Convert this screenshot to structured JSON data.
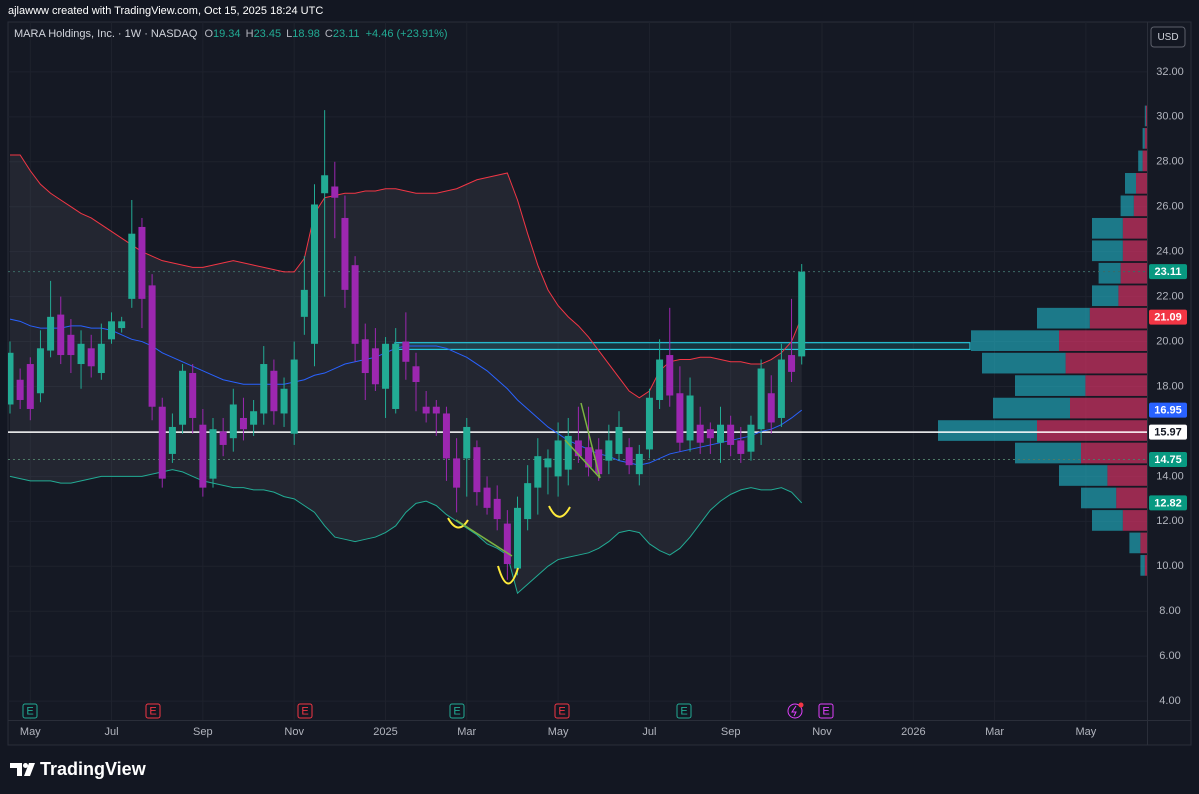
{
  "header": {
    "credit": "ajlawww created with TradingView.com, Oct 15, 2025 18:24 UTC"
  },
  "footer": {
    "brand": "TradingView"
  },
  "chart_data": {
    "type": "candlestick",
    "currency": "USD",
    "legend": {
      "symbol": "MARA Holdings, Inc. · 1W · NASDAQ",
      "ohlc": [
        {
          "key": "O",
          "value": 19.34
        },
        {
          "key": "H",
          "value": 23.45
        },
        {
          "key": "L",
          "value": 18.98
        },
        {
          "key": "C",
          "value": 23.11
        }
      ],
      "change": "+4.46 (+23.91%)",
      "value_color": "#22ab94"
    },
    "up_color": "#22ab94",
    "down_color": "#9c27b0",
    "categories": [
      null,
      null,
      "May",
      null,
      null,
      null,
      null,
      null,
      null,
      null,
      "Jul",
      null,
      null,
      null,
      null,
      null,
      null,
      null,
      null,
      "Sep",
      null,
      null,
      null,
      null,
      null,
      null,
      null,
      null,
      "Nov",
      null,
      null,
      null,
      null,
      null,
      null,
      null,
      null,
      "2025",
      null,
      null,
      null,
      null,
      null,
      null,
      null,
      "Mar",
      null,
      null,
      null,
      null,
      null,
      null,
      null,
      null,
      "May",
      null,
      null,
      null,
      null,
      null,
      null,
      null,
      null,
      "Jul",
      null,
      null,
      null,
      null,
      null,
      null,
      null,
      "Sep",
      null,
      null,
      null,
      null,
      null,
      null,
      null,
      null,
      "Nov",
      null,
      null,
      null,
      null,
      null,
      null,
      null,
      null,
      "2026",
      null,
      null,
      null,
      null,
      null,
      null,
      null,
      "Mar",
      null,
      null,
      null,
      null,
      null,
      null,
      null,
      null,
      "May"
    ],
    "open": [
      17.2,
      18.3,
      19.0,
      17.7,
      19.6,
      21.2,
      20.3,
      19.0,
      19.7,
      18.6,
      20.1,
      20.6,
      21.9,
      25.1,
      22.5,
      17.1,
      15.0,
      16.3,
      18.6,
      16.3,
      13.9,
      16.0,
      15.7,
      16.6,
      16.3,
      16.8,
      18.7,
      16.8,
      15.9,
      21.1,
      19.9,
      26.6,
      26.9,
      25.5,
      23.4,
      20.1,
      19.7,
      17.9,
      17.0,
      20.0,
      18.9,
      17.1,
      17.1,
      16.8,
      14.8,
      14.8,
      15.3,
      13.5,
      13.0,
      11.9,
      9.9,
      12.1,
      13.5,
      14.4,
      14.0,
      14.3,
      15.6,
      15.3,
      15.2,
      14.7,
      15.0,
      15.3,
      14.1,
      15.2,
      17.4,
      19.4,
      17.7,
      15.6,
      16.3,
      16.1,
      15.5,
      16.3,
      15.6,
      15.1,
      16.1,
      17.7,
      16.6,
      19.4,
      19.34,
      null,
      null,
      null,
      null,
      null,
      null,
      null,
      null,
      null,
      null,
      null,
      null,
      null,
      null,
      null,
      null,
      null,
      null,
      null,
      null,
      null,
      null,
      null,
      null,
      null,
      null,
      null,
      null
    ],
    "high": [
      20.0,
      18.8,
      19.3,
      20.5,
      22.7,
      22.0,
      21.0,
      20.5,
      20.3,
      20.8,
      21.3,
      21.1,
      26.3,
      25.5,
      23.0,
      17.5,
      16.8,
      19.0,
      19.0,
      17.0,
      16.6,
      16.6,
      17.9,
      17.5,
      17.4,
      19.8,
      19.2,
      18.4,
      20.0,
      23.8,
      27.0,
      30.3,
      28.0,
      26.5,
      23.8,
      20.8,
      20.6,
      20.2,
      20.6,
      21.3,
      19.5,
      17.8,
      17.4,
      17.1,
      15.7,
      16.6,
      15.6,
      14.0,
      13.6,
      12.5,
      13.1,
      14.5,
      15.7,
      15.2,
      16.4,
      16.6,
      17.1,
      17.1,
      15.7,
      16.3,
      16.9,
      15.7,
      15.4,
      17.9,
      20.1,
      21.5,
      18.9,
      18.4,
      17.1,
      16.4,
      17.1,
      16.7,
      16.2,
      16.7,
      19.2,
      18.5,
      19.9,
      21.9,
      23.45,
      null,
      null,
      null,
      null,
      null,
      null,
      null,
      null,
      null,
      null,
      null,
      null,
      null,
      null,
      null,
      null,
      null,
      null,
      null,
      null,
      null,
      null,
      null,
      null,
      null,
      null,
      null,
      null
    ],
    "low": [
      16.8,
      17.0,
      16.5,
      17.3,
      19.3,
      19.0,
      18.6,
      17.9,
      18.4,
      18.3,
      19.9,
      20.4,
      21.5,
      20.6,
      16.5,
      13.5,
      14.6,
      15.9,
      15.9,
      13.1,
      13.5,
      14.9,
      15.1,
      15.6,
      15.8,
      16.3,
      16.3,
      16.2,
      15.4,
      20.3,
      18.9,
      22.0,
      24.6,
      21.5,
      19.1,
      17.4,
      17.8,
      16.6,
      16.8,
      18.3,
      16.9,
      16.4,
      15.8,
      13.8,
      12.4,
      13.1,
      12.7,
      12.3,
      11.6,
      9.4,
      9.6,
      11.6,
      12.3,
      13.2,
      13.1,
      13.6,
      14.6,
      14.0,
      13.8,
      14.1,
      14.7,
      14.1,
      13.6,
      14.8,
      17.0,
      17.1,
      15.1,
      15.1,
      15.0,
      15.0,
      14.6,
      14.9,
      14.6,
      14.7,
      15.4,
      15.9,
      16.2,
      18.2,
      18.98,
      null,
      null,
      null,
      null,
      null,
      null,
      null,
      null,
      null,
      null,
      null,
      null,
      null,
      null,
      null,
      null,
      null,
      null,
      null,
      null,
      null,
      null,
      null,
      null,
      null,
      null,
      null,
      null
    ],
    "close": [
      19.5,
      17.4,
      17.0,
      19.7,
      21.1,
      19.4,
      19.4,
      19.9,
      18.9,
      19.9,
      20.9,
      20.9,
      24.8,
      21.9,
      17.1,
      13.9,
      16.2,
      18.7,
      16.6,
      13.5,
      16.1,
      15.4,
      17.2,
      16.1,
      16.9,
      19.0,
      16.9,
      17.9,
      19.2,
      22.3,
      26.1,
      27.4,
      26.4,
      22.3,
      19.9,
      18.6,
      18.1,
      19.9,
      19.9,
      19.1,
      18.2,
      16.8,
      16.8,
      14.8,
      13.5,
      16.2,
      13.3,
      12.6,
      12.1,
      10.1,
      12.6,
      13.7,
      14.9,
      14.8,
      15.6,
      15.8,
      14.9,
      14.4,
      14.1,
      15.6,
      16.2,
      14.5,
      15.0,
      17.5,
      19.2,
      17.6,
      15.5,
      17.6,
      15.5,
      15.7,
      16.3,
      15.4,
      15.0,
      16.3,
      18.8,
      16.4,
      19.2,
      18.65,
      23.11,
      null,
      null,
      null,
      null,
      null,
      null,
      null,
      null,
      null,
      null,
      null,
      null,
      null,
      null,
      null,
      null,
      null,
      null,
      null,
      null,
      null,
      null,
      null,
      null,
      null,
      null,
      null,
      null
    ],
    "bands": {
      "fill_color": "rgba(120,123,134,0.14)",
      "upper": {
        "color": "#f23645",
        "values": [
          28.3,
          28.3,
          27.6,
          27.0,
          26.6,
          26.3,
          26.0,
          25.7,
          25.5,
          25.2,
          24.9,
          24.6,
          24.3,
          24.0,
          23.8,
          23.6,
          23.5,
          23.4,
          23.3,
          23.3,
          23.4,
          23.5,
          23.6,
          23.5,
          23.4,
          23.3,
          23.2,
          23.1,
          23.1,
          23.7,
          25.7,
          26.4,
          26.5,
          26.6,
          26.6,
          26.7,
          26.7,
          26.8,
          26.8,
          26.7,
          26.6,
          26.6,
          26.6,
          26.7,
          26.8,
          27.0,
          27.2,
          27.3,
          27.4,
          27.5,
          26.3,
          24.8,
          23.4,
          22.3,
          21.6,
          21.1,
          20.7,
          20.2,
          19.6,
          19.0,
          18.4,
          17.8,
          17.5,
          17.8,
          18.7,
          19.1,
          19.2,
          19.2,
          19.3,
          19.3,
          19.2,
          19.1,
          19.1,
          19.0,
          19.0,
          19.2,
          19.5,
          20.0,
          21.09,
          null,
          null,
          null,
          null,
          null,
          null,
          null,
          null,
          null,
          null,
          null,
          null,
          null,
          null,
          null,
          null,
          null,
          null,
          null,
          null,
          null,
          null,
          null,
          null,
          null,
          null,
          null,
          null
        ]
      },
      "middle": {
        "color": "#2962ff",
        "values": [
          21.0,
          20.9,
          20.7,
          20.6,
          20.6,
          20.6,
          20.7,
          20.7,
          20.6,
          20.6,
          20.5,
          20.3,
          20.1,
          20.0,
          19.8,
          19.5,
          19.3,
          19.1,
          18.9,
          18.7,
          18.5,
          18.3,
          18.2,
          18.1,
          18.1,
          18.1,
          18.1,
          18.1,
          18.2,
          18.3,
          18.5,
          18.6,
          18.8,
          19.0,
          19.1,
          19.2,
          19.3,
          19.5,
          19.7,
          19.8,
          19.8,
          19.8,
          19.8,
          19.7,
          19.5,
          19.3,
          19.0,
          18.7,
          18.3,
          17.9,
          17.4,
          17.0,
          16.6,
          16.2,
          15.9,
          15.6,
          15.4,
          15.2,
          15.0,
          14.9,
          14.7,
          14.6,
          14.5,
          14.6,
          14.8,
          15.0,
          15.1,
          15.2,
          15.3,
          15.4,
          15.5,
          15.6,
          15.7,
          15.8,
          16.0,
          16.1,
          16.3,
          16.6,
          16.95,
          null,
          null,
          null,
          null,
          null,
          null,
          null,
          null,
          null,
          null,
          null,
          null,
          null,
          null,
          null,
          null,
          null,
          null,
          null,
          null,
          null,
          null,
          null,
          null,
          null,
          null,
          null,
          null
        ]
      },
      "lower": {
        "color": "#22ab94",
        "values": [
          14.0,
          13.9,
          13.8,
          13.8,
          13.8,
          13.7,
          13.7,
          13.8,
          13.9,
          14.0,
          14.0,
          14.0,
          14.0,
          14.0,
          14.1,
          14.2,
          14.3,
          14.2,
          14.0,
          13.8,
          13.7,
          13.6,
          13.5,
          13.5,
          13.4,
          13.4,
          13.3,
          13.1,
          13.0,
          12.7,
          12.4,
          11.8,
          11.3,
          11.2,
          11.1,
          11.2,
          11.3,
          11.5,
          11.8,
          12.4,
          12.8,
          12.9,
          12.7,
          12.3,
          12.0,
          11.7,
          11.4,
          11.0,
          10.8,
          10.5,
          8.8,
          9.2,
          9.6,
          10.0,
          10.3,
          10.4,
          10.5,
          10.6,
          10.8,
          11.1,
          11.5,
          11.6,
          11.5,
          11.0,
          10.7,
          10.5,
          10.8,
          11.3,
          11.9,
          12.5,
          12.9,
          13.2,
          13.4,
          13.5,
          13.4,
          13.4,
          13.5,
          13.3,
          12.82,
          null,
          null,
          null,
          null,
          null,
          null,
          null,
          null,
          null,
          null,
          null,
          null,
          null,
          null,
          null,
          null,
          null,
          null,
          null,
          null,
          null,
          null,
          null,
          null,
          null,
          null,
          null,
          null
        ]
      }
    },
    "volume_profile": {
      "up_color": "rgba(34,200,220,0.55)",
      "down_color": "rgba(242,54,110,0.6)",
      "levels": [
        10,
        11,
        12,
        13,
        14,
        15,
        16,
        17,
        18,
        19,
        20,
        21,
        22,
        23,
        24,
        25,
        26,
        27,
        28,
        29,
        30
      ],
      "up": [
        2,
        5,
        14,
        16,
        22,
        30,
        45,
        35,
        32,
        38,
        40,
        24,
        12,
        10,
        14,
        14,
        6,
        5,
        2,
        1,
        0.5
      ],
      "down": [
        1,
        3,
        11,
        14,
        18,
        30,
        50,
        35,
        28,
        37,
        40,
        26,
        13,
        12,
        11,
        11,
        6,
        5,
        2,
        1,
        0.5
      ]
    },
    "zone": {
      "low": 19.65,
      "high": 19.95,
      "color": "#26c6da"
    },
    "hlines": [
      {
        "value": 15.97,
        "color": "#ffffff",
        "style": "solid"
      },
      {
        "value": 23.11,
        "color": "#3d6b66",
        "style": "dotted"
      },
      {
        "value": 14.75,
        "color": "#4e7a66",
        "style": "dotted"
      }
    ],
    "price_tags": [
      {
        "value": 23.11,
        "color": "#089981",
        "text_color": "#ffffff"
      },
      {
        "value": 21.09,
        "color": "#f23645",
        "text_color": "#ffffff"
      },
      {
        "value": 16.95,
        "color": "#2962ff",
        "text_color": "#ffffff"
      },
      {
        "value": 15.97,
        "color": "#ffffff",
        "text_color": "#131722"
      },
      {
        "value": 14.75,
        "color": "#089981",
        "text_color": "#ffffff"
      },
      {
        "value": 12.82,
        "color": "#089981",
        "text_color": "#ffffff"
      }
    ],
    "events": [
      {
        "label": "E",
        "color": "#22ab94"
      },
      {
        "label": "E",
        "color": "#f23645"
      },
      {
        "label": "E",
        "color": "#f23645"
      },
      {
        "label": "E",
        "color": "#22ab94"
      },
      {
        "label": "E",
        "color": "#f23645"
      },
      {
        "label": "E",
        "color": "#22ab94"
      },
      {
        "label": "E",
        "color": "#e040fb"
      }
    ],
    "ylim": [
      3.16,
      34.22
    ],
    "yticks": [
      {
        "value": 4,
        "label": "4.00"
      },
      {
        "value": 6,
        "label": "6.00"
      },
      {
        "value": 8,
        "label": "8.00"
      },
      {
        "value": 10,
        "label": "10.00"
      },
      {
        "value": 12,
        "label": "12.00"
      },
      {
        "value": 14,
        "label": "14.00"
      },
      {
        "value": 16,
        "label": "16.00"
      },
      {
        "value": 18,
        "label": "18.00"
      },
      {
        "value": 20,
        "label": "20.00"
      },
      {
        "value": 22,
        "label": "22.00"
      },
      {
        "value": 24,
        "label": "24.00"
      },
      {
        "value": 26,
        "label": "26.00"
      },
      {
        "value": 28,
        "label": "28.00"
      },
      {
        "value": 30,
        "label": "30.00"
      },
      {
        "value": 32,
        "label": "32.00"
      }
    ],
    "grid": true
  }
}
